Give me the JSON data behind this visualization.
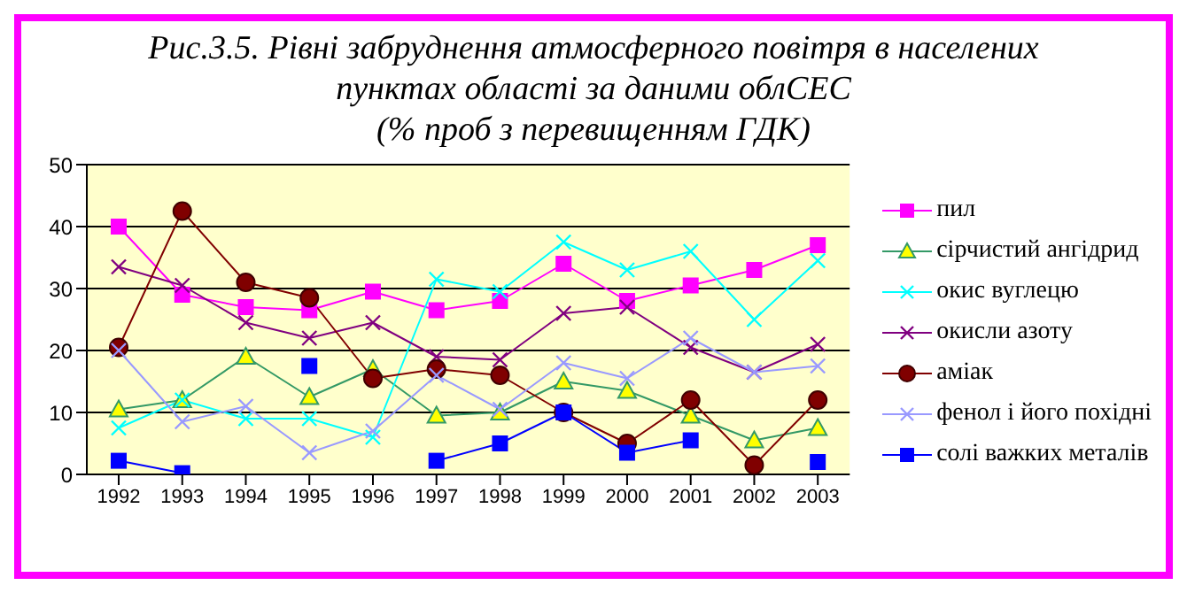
{
  "chart_data": {
    "type": "line",
    "title": "Рис.3.5. Рівні забруднення атмосферного повітря в населених пунктах області за даними облСЕС",
    "subtitle": "(% проб з перевищенням ГДК)",
    "categories": [
      "1992",
      "1993",
      "1994",
      "1995",
      "1996",
      "1997",
      "1998",
      "1999",
      "2000",
      "2001",
      "2002",
      "2003"
    ],
    "series": [
      {
        "name": "пил",
        "color": "#ff00ff",
        "marker": "square",
        "values": [
          40,
          29,
          27,
          26.5,
          29.5,
          26.5,
          28,
          34,
          28,
          30.5,
          33,
          37
        ]
      },
      {
        "name": "сірчистий ангідрид",
        "color": "#339966",
        "marker": "triangle",
        "values": [
          10.5,
          12,
          19,
          12.5,
          17,
          9.5,
          10,
          15,
          13.5,
          9.5,
          5.5,
          7.5
        ]
      },
      {
        "name": "окис вуглецю",
        "color": "#00ffff",
        "marker": "cross",
        "values": [
          7.5,
          12,
          9,
          9,
          6,
          31.5,
          29.5,
          37.5,
          33,
          36,
          25,
          34.5
        ]
      },
      {
        "name": "окисли азоту",
        "color": "#800080",
        "marker": "cross",
        "values": [
          33.5,
          30.5,
          24.5,
          22,
          24.5,
          19,
          18.5,
          26,
          27,
          20.5,
          16.5,
          21
        ]
      },
      {
        "name": "аміак",
        "color": "#800000",
        "marker": "circle",
        "values": [
          20.5,
          42.5,
          31,
          28.5,
          15.5,
          17,
          16,
          10,
          5,
          12,
          1.5,
          12
        ]
      },
      {
        "name": "фенол і його похідні",
        "color": "#9999ff",
        "marker": "cross",
        "values": [
          20,
          8.5,
          11,
          3.5,
          7,
          16,
          10.5,
          18,
          15.5,
          22,
          16.5,
          17.5
        ]
      },
      {
        "name": "солі важких металів",
        "color": "#0000ff",
        "marker": "square",
        "values": [
          2.2,
          0.2,
          null,
          17.5,
          null,
          2.2,
          5,
          10,
          3.5,
          5.5,
          null,
          2
        ]
      }
    ],
    "ylim": [
      0,
      50
    ],
    "yticks": [
      0,
      10,
      20,
      30,
      40,
      50
    ],
    "grid": "y",
    "legend": "right"
  }
}
